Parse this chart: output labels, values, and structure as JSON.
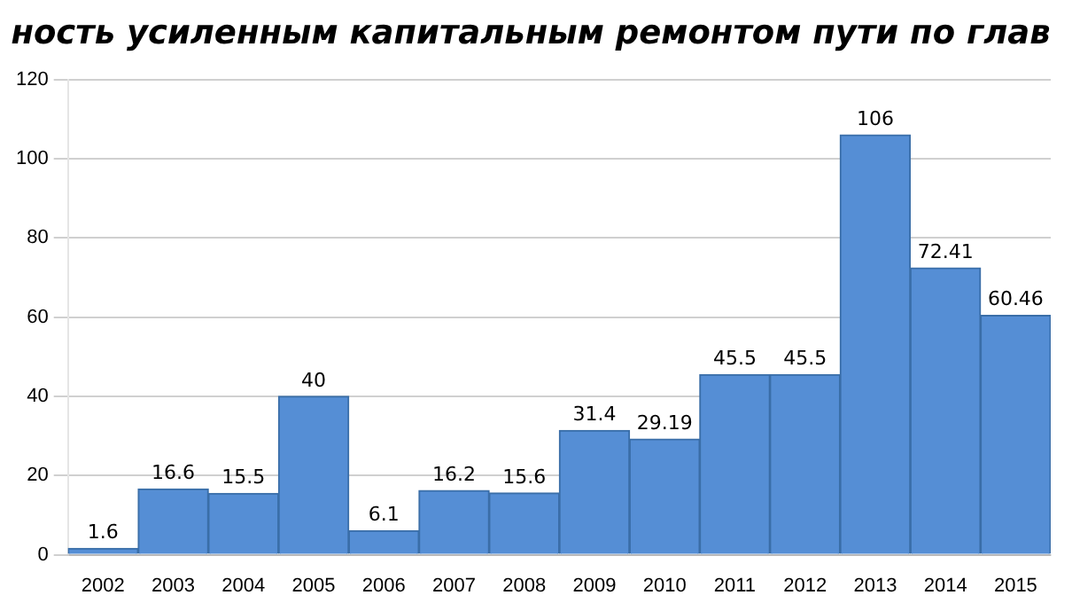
{
  "chart_data": {
    "type": "bar",
    "title": "ность усиленным капитальным ремонтом пути по глав",
    "categories": [
      "2002",
      "2003",
      "2004",
      "2005",
      "2006",
      "2007",
      "2008",
      "2009",
      "2010",
      "2011",
      "2012",
      "2013",
      "2014",
      "2015"
    ],
    "values": [
      1.6,
      16.6,
      15.5,
      40,
      6.1,
      16.2,
      15.6,
      31.4,
      29.19,
      45.5,
      45.5,
      106,
      72.41,
      60.46
    ],
    "color": "#558ed5",
    "ylim": [
      0,
      120
    ],
    "yticks": [
      0,
      20,
      40,
      60,
      80,
      100,
      120
    ],
    "grid": "y",
    "data_labels": true
  }
}
